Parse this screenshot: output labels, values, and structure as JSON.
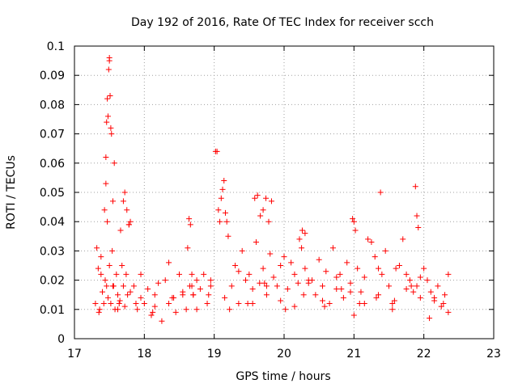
{
  "chart_data": {
    "type": "scatter",
    "title": "Day 192 of 2016, Rate Of TEC Index for receiver scch",
    "xlabel": "GPS time / hours",
    "ylabel": "ROTI / TECUs",
    "xlim": [
      17,
      23
    ],
    "ylim": [
      0,
      0.1
    ],
    "xticks": [
      "17",
      "18",
      "19",
      "20",
      "21",
      "22",
      "23"
    ],
    "yticks": [
      "0",
      "0.01",
      "0.02",
      "0.03",
      "0.04",
      "0.05",
      "0.06",
      "0.07",
      "0.08",
      "0.09",
      "0.1"
    ],
    "grid": true,
    "marker": "+",
    "color": "#ff0000",
    "series": [
      {
        "name": "scch",
        "x": [
          17.3,
          17.32,
          17.34,
          17.36,
          17.38,
          17.4,
          17.42,
          17.44,
          17.46,
          17.48,
          17.5,
          17.52,
          17.54,
          17.56,
          17.58,
          17.6,
          17.62,
          17.64,
          17.66,
          17.68,
          17.7,
          17.72,
          17.74,
          17.76,
          17.78,
          17.8,
          17.45,
          17.46,
          17.47,
          17.48,
          17.49,
          17.5,
          17.51,
          17.52,
          17.5,
          17.53,
          17.55,
          17.57,
          17.45,
          17.43,
          17.47,
          17.7,
          17.72,
          17.75,
          17.78,
          17.8,
          17.85,
          17.9,
          17.95,
          18.0,
          18.05,
          18.1,
          18.15,
          18.2,
          18.25,
          18.3,
          18.35,
          18.4,
          18.45,
          18.5,
          18.55,
          18.6,
          18.65,
          18.7,
          18.75,
          18.8,
          18.85,
          18.9,
          18.95,
          18.62,
          18.64,
          18.66,
          18.68,
          18.7,
          19.02,
          19.04,
          19.06,
          19.08,
          19.1,
          19.12,
          19.14,
          19.16,
          19.18,
          19.2,
          19.25,
          19.3,
          19.35,
          19.4,
          19.45,
          19.5,
          19.55,
          19.6,
          19.65,
          19.7,
          19.75,
          19.8,
          19.85,
          19.9,
          19.95,
          20.0,
          20.05,
          20.1,
          20.15,
          20.2,
          20.25,
          20.3,
          20.35,
          19.58,
          19.62,
          19.66,
          19.7,
          19.74,
          19.78,
          19.82,
          20.22,
          20.26,
          20.3,
          20.4,
          20.45,
          20.5,
          20.55,
          20.6,
          20.65,
          20.7,
          20.75,
          20.8,
          20.85,
          20.9,
          20.95,
          21.0,
          21.05,
          21.1,
          21.15,
          21.2,
          21.25,
          21.3,
          21.35,
          21.4,
          21.45,
          21.5,
          21.55,
          21.6,
          20.98,
          21.0,
          21.02,
          21.38,
          21.65,
          21.7,
          21.75,
          21.8,
          21.85,
          21.9,
          21.95,
          22.0,
          22.05,
          22.1,
          22.15,
          22.2,
          22.25,
          22.3,
          22.35,
          21.88,
          21.9,
          21.92,
          17.35,
          17.55,
          17.65,
          17.95,
          18.15,
          18.35,
          18.55,
          18.75,
          18.95,
          19.15,
          19.35,
          19.55,
          19.75,
          19.95,
          20.15,
          20.35,
          20.55,
          20.75,
          20.95,
          21.15,
          21.35,
          21.55,
          21.75,
          21.95,
          22.15,
          22.35,
          17.38,
          17.62,
          17.88,
          18.12,
          18.42,
          18.68,
          18.92,
          19.22,
          19.48,
          19.72,
          20.02,
          20.28,
          20.58,
          20.82,
          21.08,
          21.32,
          21.58,
          21.82,
          22.08,
          22.28
        ],
        "y": [
          0.012,
          0.031,
          0.024,
          0.01,
          0.028,
          0.016,
          0.012,
          0.02,
          0.018,
          0.014,
          0.025,
          0.012,
          0.03,
          0.018,
          0.01,
          0.022,
          0.015,
          0.012,
          0.037,
          0.025,
          0.018,
          0.011,
          0.022,
          0.015,
          0.039,
          0.016,
          0.062,
          0.074,
          0.082,
          0.076,
          0.092,
          0.095,
          0.083,
          0.072,
          0.096,
          0.07,
          0.047,
          0.06,
          0.053,
          0.044,
          0.04,
          0.047,
          0.05,
          0.044,
          0.039,
          0.04,
          0.018,
          0.01,
          0.014,
          0.012,
          0.017,
          0.008,
          0.015,
          0.019,
          0.006,
          0.02,
          0.012,
          0.014,
          0.009,
          0.022,
          0.016,
          0.01,
          0.018,
          0.015,
          0.02,
          0.017,
          0.022,
          0.012,
          0.018,
          0.031,
          0.041,
          0.039,
          0.022,
          0.015,
          0.064,
          0.064,
          0.044,
          0.04,
          0.048,
          0.051,
          0.054,
          0.043,
          0.04,
          0.035,
          0.018,
          0.025,
          0.012,
          0.03,
          0.02,
          0.022,
          0.017,
          0.033,
          0.019,
          0.024,
          0.015,
          0.029,
          0.021,
          0.018,
          0.013,
          0.028,
          0.017,
          0.026,
          0.022,
          0.019,
          0.031,
          0.024,
          0.02,
          0.048,
          0.049,
          0.042,
          0.044,
          0.048,
          0.04,
          0.047,
          0.034,
          0.037,
          0.036,
          0.02,
          0.015,
          0.027,
          0.018,
          0.023,
          0.012,
          0.031,
          0.017,
          0.022,
          0.014,
          0.026,
          0.019,
          0.008,
          0.024,
          0.016,
          0.021,
          0.034,
          0.033,
          0.028,
          0.015,
          0.022,
          0.03,
          0.018,
          0.012,
          0.024,
          0.041,
          0.04,
          0.037,
          0.05,
          0.025,
          0.034,
          0.022,
          0.02,
          0.016,
          0.018,
          0.014,
          0.024,
          0.02,
          0.016,
          0.013,
          0.018,
          0.011,
          0.015,
          0.022,
          0.052,
          0.042,
          0.038,
          0.009,
          0.018,
          0.013,
          0.022,
          0.011,
          0.026,
          0.015,
          0.01,
          0.02,
          0.014,
          0.023,
          0.012,
          0.018,
          0.025,
          0.011,
          0.019,
          0.013,
          0.021,
          0.016,
          0.012,
          0.024,
          0.01,
          0.017,
          0.021,
          0.014,
          0.009,
          0.022,
          0.01,
          0.012,
          0.009,
          0.014,
          0.018,
          0.015,
          0.01,
          0.012,
          0.019,
          0.01,
          0.015,
          0.011,
          0.017,
          0.012,
          0.014,
          0.013,
          0.018,
          0.007,
          0.012
        ]
      }
    ]
  }
}
